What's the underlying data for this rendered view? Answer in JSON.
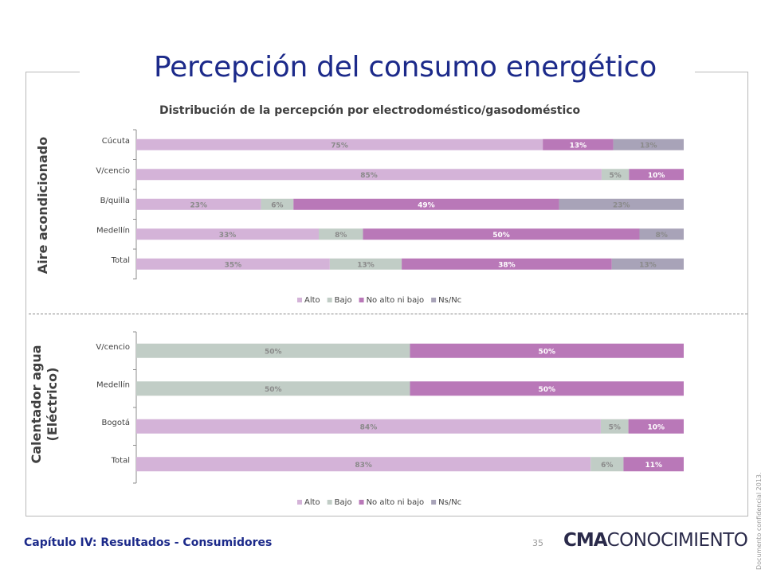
{
  "header": {
    "title": "Percepción del consumo energético",
    "subtitle": "Distribución de la percepción por electrodoméstico/gasodoméstico"
  },
  "sections": {
    "aire": "Aire acondicionado",
    "calentador_line1": "Calentador agua",
    "calentador_line2": "(Eléctrico)"
  },
  "footer": {
    "chapter": "Capítulo IV: Resultados - Consumidores",
    "page": "35",
    "logo_bold": "CMA",
    "logo_rest": "CONOCIMIENTO",
    "confidential": "Documento confidencial 2013."
  },
  "colors": {
    "Alto": "#d4b3d8",
    "Bajo": "#c1cdc6",
    "No alto ni bajo": "#b978b8",
    "Ns/Nc": "#a8a3b8",
    "title": "#1c2a8a"
  },
  "chart_data": [
    {
      "type": "bar",
      "orientation": "horizontal",
      "stacked": true,
      "categories": [
        "Cúcuta",
        "V/cencio",
        "B/quilla",
        "Medellín",
        "Total"
      ],
      "series": [
        {
          "name": "Alto",
          "values": [
            75,
            85,
            23,
            33,
            35
          ]
        },
        {
          "name": "Bajo",
          "values": [
            0,
            5,
            6,
            8,
            13
          ]
        },
        {
          "name": "No alto ni bajo",
          "values": [
            13,
            10,
            49,
            50,
            38
          ]
        },
        {
          "name": "Ns/Nc",
          "values": [
            13,
            0,
            23,
            8,
            13
          ]
        }
      ],
      "labels": [
        [
          "75%",
          "",
          "13%",
          "13%"
        ],
        [
          "85%",
          "5%",
          "10%",
          ""
        ],
        [
          "23%",
          "6%",
          "49%",
          "23%"
        ],
        [
          "33%",
          "8%",
          "50%",
          "8%"
        ],
        [
          "35%",
          "13%",
          "38%",
          "13%"
        ]
      ],
      "legend": [
        "Alto",
        "Bajo",
        "No alto ni bajo",
        "Ns/Nc"
      ],
      "legend_position": "bottom"
    },
    {
      "type": "bar",
      "orientation": "horizontal",
      "stacked": true,
      "categories": [
        "V/cencio",
        "Medellín",
        "Bogotá",
        "Total"
      ],
      "series": [
        {
          "name": "Alto",
          "values": [
            0,
            0,
            84,
            83
          ]
        },
        {
          "name": "Bajo",
          "values": [
            50,
            50,
            5,
            6
          ]
        },
        {
          "name": "No alto ni bajo",
          "values": [
            50,
            50,
            10,
            11
          ]
        },
        {
          "name": "Ns/Nc",
          "values": [
            0,
            0,
            0,
            0
          ]
        }
      ],
      "labels": [
        [
          "",
          "50%",
          "50%",
          ""
        ],
        [
          "",
          "50%",
          "50%",
          ""
        ],
        [
          "84%",
          "5%",
          "10%",
          ""
        ],
        [
          "83%",
          "6%",
          "11%",
          ""
        ]
      ],
      "legend": [
        "Alto",
        "Bajo",
        "No alto ni bajo",
        "Ns/Nc"
      ],
      "legend_position": "bottom"
    }
  ]
}
